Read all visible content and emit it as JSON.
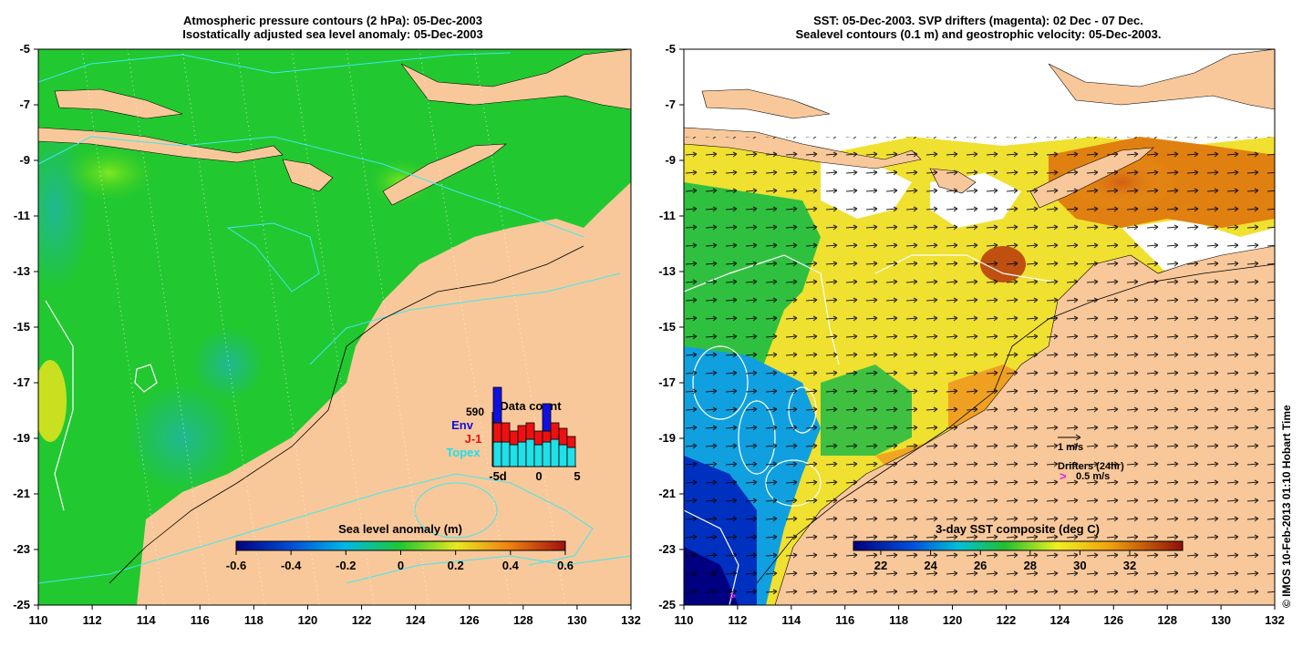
{
  "left_panel": {
    "title_line1": "Atmospheric pressure contours (2 hPa): 05-Dec-2003",
    "title_line2": "Isostatically adjusted sea level anomaly: 05-Dec-2003",
    "colorbar": {
      "label": "Sea level anomaly (m)",
      "ticks": [
        "-0.6",
        "-0.4",
        "-0.2",
        "0",
        "0.2",
        "0.4",
        "0.6"
      ]
    },
    "data_count": {
      "title": "Data count",
      "total": "590",
      "legend": [
        {
          "name": "Env",
          "color": "#1010e0"
        },
        {
          "name": "J-1",
          "color": "#ee1010"
        },
        {
          "name": "Topex",
          "color": "#20e0e8"
        }
      ],
      "x_ticks": [
        "-5d",
        "0",
        "5"
      ],
      "bars": [
        {
          "topex": 0.45,
          "j1": 0.35,
          "env": 0.65
        },
        {
          "topex": 0.45,
          "j1": 0.35,
          "env": 0.0
        },
        {
          "topex": 0.4,
          "j1": 0.25,
          "env": 0.0
        },
        {
          "topex": 0.45,
          "j1": 0.3,
          "env": 0.0
        },
        {
          "topex": 0.5,
          "j1": 0.3,
          "env": 0.0
        },
        {
          "topex": 0.4,
          "j1": 0.25,
          "env": 0.0
        },
        {
          "topex": 0.45,
          "j1": 0.2,
          "env": 0.5
        },
        {
          "topex": 0.5,
          "j1": 0.3,
          "env": 0.0
        },
        {
          "topex": 0.4,
          "j1": 0.3,
          "env": 0.0
        },
        {
          "topex": 0.35,
          "j1": 0.2,
          "env": 0.0
        }
      ]
    }
  },
  "right_panel": {
    "title_line1": "SST: 05-Dec-2003. SVP drifters (magenta): 02 Dec - 07 Dec.",
    "title_line2": "Sealevel contours (0.1 m) and geostrophic velocity: 05-Dec-2003.",
    "colorbar": {
      "label": "3-day SST composite (deg C)",
      "ticks": [
        "22",
        "24",
        "26",
        "28",
        "30",
        "32"
      ]
    },
    "velocity_scale_label": "1 m/s",
    "drifters_label": "Drifters (24hr)",
    "drifter_symbol": ">",
    "drifter_scale_label": "0.5 m/s"
  },
  "axes": {
    "x_ticks": [
      "110",
      "112",
      "114",
      "116",
      "118",
      "120",
      "122",
      "124",
      "126",
      "128",
      "130",
      "132"
    ],
    "y_ticks": [
      "-5",
      "-7",
      "-9",
      "-11",
      "-13",
      "-15",
      "-17",
      "-19",
      "-21",
      "-23",
      "-25"
    ]
  },
  "credit": "© IMOS 10-Feb-2013 01:10 Hobart Time",
  "colors": {
    "land": "#f8c89a",
    "sea_green": "#28c828",
    "contour_cyan": "#40e8f0"
  }
}
